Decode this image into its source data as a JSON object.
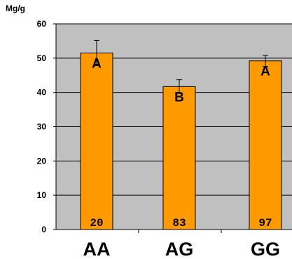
{
  "chart_data": {
    "type": "bar",
    "ylabel": "Mg/g",
    "ylim": [
      0,
      60
    ],
    "yticks": [
      "0",
      "10",
      "20",
      "30",
      "40",
      "50",
      "60"
    ],
    "categories": [
      "AA",
      "AG",
      "GG"
    ],
    "values": [
      51.5,
      41.7,
      49.2
    ],
    "error": [
      3.7,
      2.0,
      1.6
    ],
    "significance_letters": [
      "A",
      "B",
      "A"
    ],
    "sample_sizes": [
      "20",
      "83",
      "97"
    ],
    "grid": true,
    "colors": {
      "bar_fill": "#ff9900",
      "bar_stroke": "#000000",
      "plot_background": "#c0c0c0",
      "gridline": "#000000",
      "error_bar": "#000000"
    }
  }
}
